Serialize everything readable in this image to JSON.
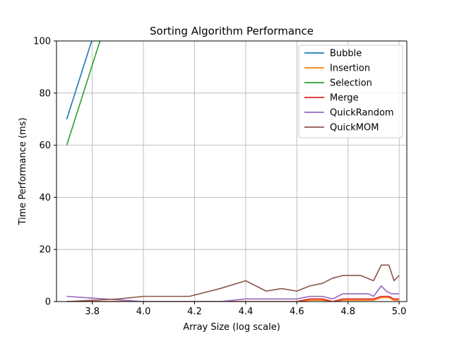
{
  "chart_data": {
    "type": "line",
    "title": "Sorting Algorithm Performance",
    "xlabel": "Array Size (log scale)",
    "ylabel": "Time Performance (ms)",
    "xlim": [
      3.66,
      5.03
    ],
    "ylim": [
      0,
      100
    ],
    "xticks": [
      3.8,
      4.0,
      4.2,
      4.4,
      4.6,
      4.8,
      5.0
    ],
    "yticks": [
      0,
      20,
      40,
      60,
      80,
      100
    ],
    "xtick_labels": [
      "3.8",
      "4.0",
      "4.2",
      "4.4",
      "4.6",
      "4.8",
      "5.0"
    ],
    "ytick_labels": [
      "0",
      "20",
      "40",
      "60",
      "80",
      "100"
    ],
    "grid": true,
    "legend_position": "top-right",
    "series": [
      {
        "name": "Bubble",
        "color": "#1f77b4",
        "x": [
          3.7,
          3.83
        ],
        "y": [
          70,
          110
        ]
      },
      {
        "name": "Insertion",
        "color": "#ff7f0e",
        "x": [
          3.7,
          3.8,
          4.0,
          4.2,
          4.4,
          4.6,
          4.65,
          4.7,
          4.74,
          4.78,
          4.9,
          4.93,
          4.96,
          4.98,
          5.0
        ],
        "y": [
          0,
          0,
          0,
          0,
          0,
          0,
          0.5,
          0.5,
          0,
          0.5,
          0.5,
          1.5,
          1.5,
          0.5,
          0.5
        ]
      },
      {
        "name": "Selection",
        "color": "#2ca02c",
        "x": [
          3.7,
          3.83
        ],
        "y": [
          60,
          100
        ]
      },
      {
        "name": "Merge",
        "color": "#d62728",
        "x": [
          3.7,
          3.8,
          4.0,
          4.2,
          4.4,
          4.6,
          4.65,
          4.7,
          4.74,
          4.78,
          4.9,
          4.93,
          4.96,
          4.98,
          5.0
        ],
        "y": [
          0,
          0,
          0,
          0,
          0,
          0,
          1,
          1,
          0,
          1,
          1,
          2,
          2,
          1,
          1
        ]
      },
      {
        "name": "QuickRandom",
        "color": "#9467bd",
        "x": [
          3.7,
          3.85,
          4.0,
          4.2,
          4.3,
          4.4,
          4.48,
          4.56,
          4.6,
          4.65,
          4.7,
          4.74,
          4.78,
          4.85,
          4.88,
          4.9,
          4.93,
          4.95,
          4.97,
          5.0
        ],
        "y": [
          2,
          1,
          0,
          0,
          0,
          1,
          1,
          1,
          1,
          2,
          2,
          1,
          3,
          3,
          3,
          2,
          6,
          4,
          3,
          3
        ]
      },
      {
        "name": "QuickMOM",
        "color": "#8c564b",
        "x": [
          3.7,
          3.8,
          3.9,
          4.0,
          4.18,
          4.3,
          4.4,
          4.48,
          4.54,
          4.6,
          4.65,
          4.7,
          4.74,
          4.78,
          4.85,
          4.9,
          4.93,
          4.96,
          4.98,
          5.0
        ],
        "y": [
          0,
          0.5,
          1,
          2,
          2,
          5,
          8,
          4,
          5,
          4,
          6,
          7,
          9,
          10,
          10,
          8,
          14,
          14,
          8,
          10
        ]
      }
    ]
  }
}
